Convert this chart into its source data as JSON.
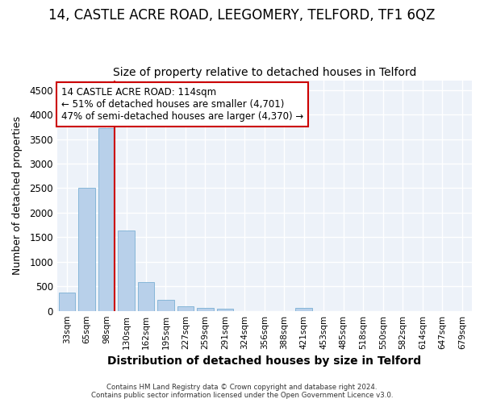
{
  "title": "14, CASTLE ACRE ROAD, LEEGOMERY, TELFORD, TF1 6QZ",
  "subtitle": "Size of property relative to detached houses in Telford",
  "xlabel": "Distribution of detached houses by size in Telford",
  "ylabel": "Number of detached properties",
  "categories": [
    "33sqm",
    "65sqm",
    "98sqm",
    "130sqm",
    "162sqm",
    "195sqm",
    "227sqm",
    "259sqm",
    "291sqm",
    "324sqm",
    "356sqm",
    "388sqm",
    "421sqm",
    "453sqm",
    "485sqm",
    "518sqm",
    "550sqm",
    "582sqm",
    "614sqm",
    "647sqm",
    "679sqm"
  ],
  "values": [
    370,
    2510,
    3720,
    1630,
    590,
    225,
    100,
    60,
    40,
    0,
    0,
    0,
    60,
    0,
    0,
    0,
    0,
    0,
    0,
    0,
    0
  ],
  "bar_color": "#b8d0ea",
  "bar_edge_color": "#7aafd4",
  "highlight_bar_index": 2,
  "highlight_color": "#cc0000",
  "annotation_line1": "14 CASTLE ACRE ROAD: 114sqm",
  "annotation_line2": "← 51% of detached houses are smaller (4,701)",
  "annotation_line3": "47% of semi-detached houses are larger (4,370) →",
  "annotation_box_color": "#cc0000",
  "ylim_max": 4700,
  "yticks": [
    0,
    500,
    1000,
    1500,
    2000,
    2500,
    3000,
    3500,
    4000,
    4500
  ],
  "background_color": "#edf2f9",
  "plot_bg_color": "#edf2f9",
  "fig_bg_color": "#ffffff",
  "grid_color": "#ffffff",
  "footer_line1": "Contains HM Land Registry data © Crown copyright and database right 2024.",
  "footer_line2": "Contains public sector information licensed under the Open Government Licence v3.0.",
  "title_fontsize": 12,
  "subtitle_fontsize": 10,
  "ylabel_fontsize": 9,
  "xlabel_fontsize": 10
}
